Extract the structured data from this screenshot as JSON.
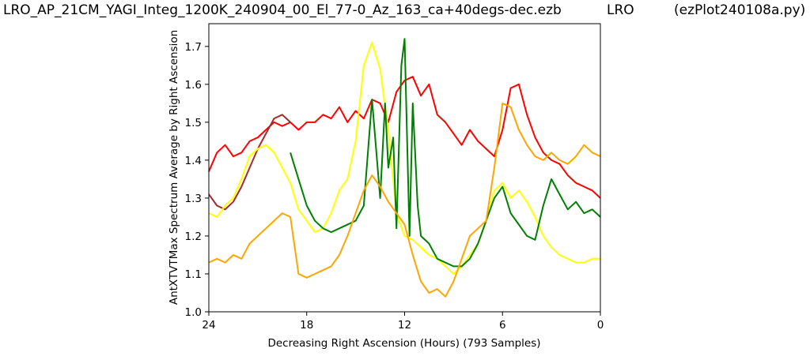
{
  "header": {
    "filename": "LRO_AP_21CM_YAGI_Integ_1200K_240904_00_El_77-0_Az_163_ca+40degs-dec.ezb",
    "station": "LRO",
    "program": "(ezPlot240108a.py)"
  },
  "chart_data": {
    "type": "line",
    "xlabel": "Decreasing Right Ascension (Hours) (793 Samples)",
    "ylabel": "AntXTVTMax Spectrum Average by Right Ascension",
    "xlim": [
      24,
      0
    ],
    "ylim": [
      1.0,
      1.76
    ],
    "x_ticks": [
      24,
      18,
      12,
      6,
      0
    ],
    "y_ticks": [
      1.0,
      1.1,
      1.2,
      1.3,
      1.4,
      1.5,
      1.6,
      1.7
    ],
    "grid": false,
    "legend": "none",
    "series": [
      {
        "color": "#ff0000",
        "x": [
          24,
          23.5,
          23,
          22.5,
          22,
          21.5,
          21,
          20.5,
          20,
          19.5,
          19,
          18.5,
          18,
          17.5,
          17,
          16.5,
          16,
          15.5,
          15,
          14.5,
          14,
          13.5,
          13,
          12.5,
          12,
          11.5,
          11,
          10.5,
          10,
          9.5,
          9,
          8.5,
          8,
          7.5,
          7,
          6.5,
          6,
          5.5,
          5,
          4.5,
          4,
          3.5,
          3,
          2.5,
          2,
          1.5,
          1,
          0.5,
          0
        ],
        "y": [
          1.37,
          1.42,
          1.44,
          1.41,
          1.42,
          1.45,
          1.46,
          1.48,
          1.5,
          1.49,
          1.5,
          1.48,
          1.5,
          1.5,
          1.52,
          1.51,
          1.54,
          1.5,
          1.53,
          1.51,
          1.56,
          1.55,
          1.5,
          1.58,
          1.61,
          1.62,
          1.57,
          1.6,
          1.52,
          1.5,
          1.47,
          1.44,
          1.48,
          1.45,
          1.43,
          1.41,
          1.48,
          1.59,
          1.6,
          1.52,
          1.46,
          1.42,
          1.4,
          1.39,
          1.36,
          1.34,
          1.33,
          1.32,
          1.3
        ]
      },
      {
        "color": "#a52a2a",
        "x": [
          24,
          23.5,
          23,
          22.5,
          22,
          21.5,
          21,
          20.5,
          20,
          19.5,
          19
        ],
        "y": [
          1.31,
          1.28,
          1.27,
          1.29,
          1.33,
          1.38,
          1.43,
          1.47,
          1.51,
          1.52,
          1.5
        ]
      },
      {
        "color": "#ffff00",
        "x": [
          24,
          23.5,
          23,
          22.5,
          22,
          21.5,
          21,
          20.5,
          20,
          19.5,
          19,
          18.5,
          18,
          17.5,
          17,
          16.5,
          16,
          15.5,
          15,
          14.5,
          14,
          13.5,
          13,
          12.5,
          12,
          11.5,
          11,
          10.5,
          10,
          9.5,
          9,
          8.5,
          8,
          7.5,
          7,
          6.5,
          6,
          5.5,
          5,
          4.5,
          4,
          3.5,
          3,
          2.5,
          2,
          1.5,
          1,
          0.5,
          0
        ],
        "y": [
          1.26,
          1.25,
          1.28,
          1.3,
          1.35,
          1.41,
          1.43,
          1.44,
          1.42,
          1.38,
          1.34,
          1.27,
          1.24,
          1.21,
          1.22,
          1.26,
          1.32,
          1.35,
          1.45,
          1.65,
          1.71,
          1.64,
          1.48,
          1.26,
          1.2,
          1.19,
          1.17,
          1.15,
          1.14,
          1.12,
          1.1,
          1.12,
          1.15,
          1.18,
          1.24,
          1.32,
          1.34,
          1.3,
          1.32,
          1.29,
          1.25,
          1.2,
          1.17,
          1.15,
          1.14,
          1.13,
          1.13,
          1.14,
          1.14
        ]
      },
      {
        "color": "#008000",
        "x": [
          19,
          18.5,
          18,
          17.5,
          17,
          16.5,
          16,
          15,
          14.5,
          14,
          13.5,
          13.2,
          13,
          12.7,
          12.5,
          12.2,
          12,
          11.7,
          11.5,
          11.2,
          11,
          10.5,
          10,
          9.5,
          9,
          8.5,
          8,
          7.5,
          7,
          6.5,
          6,
          5.5,
          5,
          4.5,
          4,
          3.5,
          3,
          2.5,
          2,
          1.5,
          1,
          0.5,
          0
        ],
        "y": [
          1.42,
          1.35,
          1.28,
          1.24,
          1.22,
          1.21,
          1.22,
          1.24,
          1.28,
          1.56,
          1.3,
          1.55,
          1.38,
          1.46,
          1.22,
          1.65,
          1.72,
          1.2,
          1.55,
          1.28,
          1.2,
          1.18,
          1.14,
          1.13,
          1.12,
          1.12,
          1.14,
          1.18,
          1.24,
          1.3,
          1.33,
          1.26,
          1.23,
          1.2,
          1.19,
          1.28,
          1.35,
          1.31,
          1.27,
          1.29,
          1.26,
          1.27,
          1.25
        ]
      },
      {
        "color": "#ffa500",
        "x": [
          24,
          23.5,
          23,
          22.5,
          22,
          21.5,
          21,
          20.5,
          20,
          19.5,
          19,
          18.5,
          18,
          17.5,
          17,
          16.5,
          16,
          15.5,
          15,
          14.5,
          14,
          13.5,
          13,
          12.5,
          12,
          11.5,
          11,
          10.5,
          10,
          9.5,
          9,
          8.5,
          8,
          7.5,
          7,
          6.5,
          6,
          5.5,
          5,
          4.5,
          4,
          3.5,
          3,
          2.5,
          2,
          1.5,
          1,
          0.5,
          0
        ],
        "y": [
          1.13,
          1.14,
          1.13,
          1.15,
          1.14,
          1.18,
          1.2,
          1.22,
          1.24,
          1.26,
          1.25,
          1.1,
          1.09,
          1.1,
          1.11,
          1.12,
          1.15,
          1.2,
          1.26,
          1.32,
          1.36,
          1.33,
          1.29,
          1.26,
          1.23,
          1.15,
          1.08,
          1.05,
          1.06,
          1.04,
          1.08,
          1.14,
          1.2,
          1.22,
          1.24,
          1.38,
          1.55,
          1.54,
          1.48,
          1.44,
          1.41,
          1.4,
          1.42,
          1.4,
          1.39,
          1.41,
          1.44,
          1.42,
          1.41
        ]
      }
    ]
  }
}
